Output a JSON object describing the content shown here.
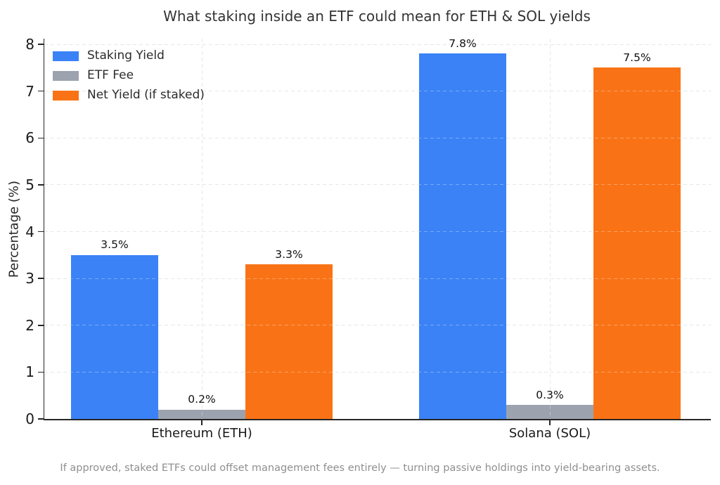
{
  "figure": {
    "title": "What staking inside an ETF could mean for ETH & SOL yields",
    "footer": "If approved, staked ETFs could offset management fees entirely — turning passive holdings into yield-bearing assets."
  },
  "chart_data": {
    "type": "bar",
    "title": "What staking inside an ETF could mean for ETH & SOL yields",
    "categories": [
      "Ethereum (ETH)",
      "Solana (SOL)"
    ],
    "series": [
      {
        "name": "Staking Yield",
        "color": "#3b82f6",
        "values": [
          3.5,
          7.8
        ],
        "labels": [
          "3.5%",
          "7.8%"
        ]
      },
      {
        "name": "ETF Fee",
        "color": "#9ca3af",
        "values": [
          0.2,
          0.3
        ],
        "labels": [
          "0.2%",
          "0.3%"
        ]
      },
      {
        "name": "Net Yield (if staked)",
        "color": "#f97316",
        "values": [
          3.3,
          7.5
        ],
        "labels": [
          "3.3%",
          "7.5%"
        ]
      }
    ],
    "xlabel": "",
    "ylabel": "Percentage (%)",
    "yticks": [
      "0",
      "1",
      "2",
      "3",
      "4",
      "5",
      "6",
      "7",
      "8"
    ],
    "ylim": [
      0,
      8.1
    ],
    "grid": "dashed, both axes",
    "legend_position": "upper left",
    "annotation": "If approved, staked ETFs could offset management fees entirely — turning passive holdings into yield-bearing assets."
  }
}
